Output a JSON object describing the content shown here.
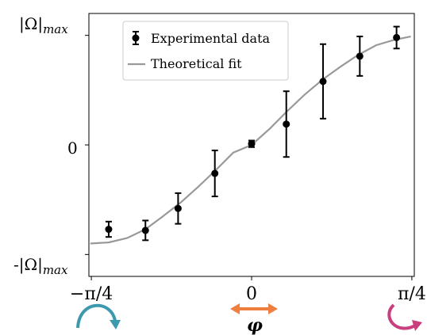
{
  "chart_data": {
    "type": "scatter",
    "title": "",
    "xlabel": "",
    "ylabel": "",
    "x_tick_labels": [
      "−π/4",
      "0",
      "π/4"
    ],
    "y_tick_labels": [
      "-|Ω|max",
      "0",
      "|Ω|max"
    ],
    "y_tick_parts": {
      "top": {
        "main": "|Ω|",
        "sub": "max"
      },
      "mid": {
        "main": "0"
      },
      "bottom": {
        "main": "-|Ω|",
        "sub": "max"
      }
    },
    "xlim": [
      -0.797,
      0.797
    ],
    "ylim": [
      -1.2,
      1.2
    ],
    "x_ticks": [
      -0.785,
      0,
      0.785
    ],
    "y_ticks": [
      -1,
      0,
      1
    ],
    "grid": false,
    "legend_position": "top-left",
    "series": [
      {
        "name": "Experimental data",
        "kind": "errorbar",
        "color": "#000000",
        "x": [
          -0.7,
          -0.52,
          -0.36,
          -0.18,
          0.0,
          0.17,
          0.35,
          0.53,
          0.71
        ],
        "y": [
          -0.77,
          -0.78,
          -0.58,
          -0.26,
          0.01,
          0.19,
          0.58,
          0.81,
          0.98
        ],
        "yerr": [
          0.07,
          0.09,
          0.14,
          0.21,
          0.03,
          0.3,
          0.34,
          0.18,
          0.1
        ]
      },
      {
        "name": "Theoretical fit",
        "kind": "line",
        "color": "#999999",
        "x": [
          -0.79,
          -0.7,
          -0.61,
          -0.52,
          -0.44,
          -0.35,
          -0.26,
          -0.17,
          -0.09,
          0.0,
          0.09,
          0.17,
          0.26,
          0.35,
          0.44,
          0.52,
          0.61,
          0.7,
          0.78
        ],
        "y": [
          -0.9,
          -0.89,
          -0.85,
          -0.77,
          -0.66,
          -0.53,
          -0.38,
          -0.22,
          -0.07,
          0.0,
          0.15,
          0.3,
          0.46,
          0.6,
          0.72,
          0.82,
          0.91,
          0.96,
          0.99
        ]
      }
    ]
  },
  "colors": {
    "teal_arrow": "#3d9aae",
    "orange_arrow": "#ee7f3e",
    "magenta_arrow": "#c93f7e"
  },
  "annotations": {
    "phi_symbol": "φ"
  }
}
